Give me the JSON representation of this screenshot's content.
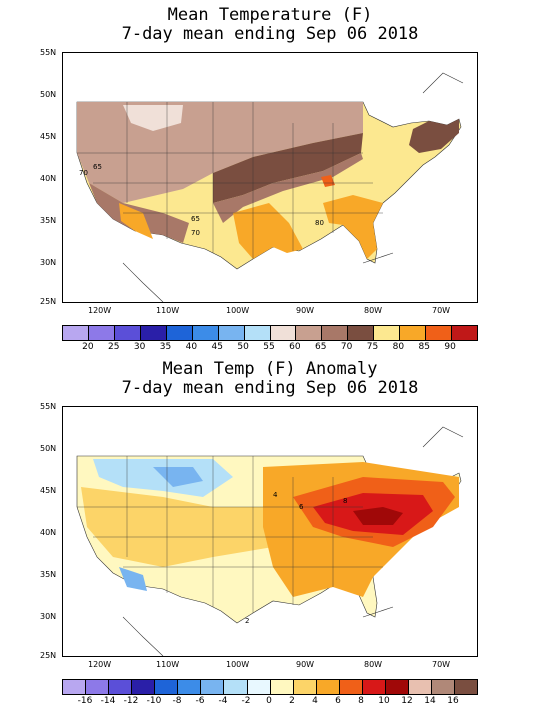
{
  "map1": {
    "title1": "Mean Temperature (F)",
    "title2": "7-day mean ending Sep 06 2018",
    "lat_labels": [
      "55N",
      "50N",
      "45N",
      "40N",
      "35N",
      "30N",
      "25N"
    ],
    "lon_labels": [
      "120W",
      "110W",
      "100W",
      "90W",
      "80W",
      "70W"
    ],
    "contour_labels": [
      "65",
      "70",
      "65",
      "70",
      "80"
    ],
    "legend_labels": [
      "20",
      "25",
      "30",
      "35",
      "40",
      "45",
      "50",
      "55",
      "60",
      "65",
      "70",
      "75",
      "80",
      "85",
      "90"
    ],
    "legend_colors": [
      "#b8a7f0",
      "#8d79e8",
      "#5b4fd8",
      "#2a1fa8",
      "#1e64d8",
      "#3c8ce8",
      "#78b4f0",
      "#b4e0f8",
      "#f0e0d8",
      "#c8a090",
      "#a87868",
      "#7a4e40",
      "#fce890",
      "#f8a828",
      "#f06018",
      "#c01818"
    ]
  },
  "map2": {
    "title1": "Mean Temp (F) Anomaly",
    "title2": "7-day mean ending Sep 06 2018",
    "lat_labels": [
      "55N",
      "50N",
      "45N",
      "40N",
      "35N",
      "30N",
      "25N"
    ],
    "lon_labels": [
      "120W",
      "110W",
      "100W",
      "90W",
      "80W",
      "70W"
    ],
    "contour_labels": [
      "4",
      "6",
      "8",
      "2"
    ],
    "legend_labels": [
      "-16",
      "-14",
      "-12",
      "-10",
      "-8",
      "-6",
      "-4",
      "-2",
      "0",
      "2",
      "4",
      "6",
      "8",
      "10",
      "12",
      "14",
      "16"
    ],
    "legend_colors": [
      "#b8a7f0",
      "#8d79e8",
      "#5b4fd8",
      "#2a1fa8",
      "#1e64d8",
      "#3c8ce8",
      "#78b4f0",
      "#b4e0f8",
      "#e8f8ff",
      "#fff8c0",
      "#fcd468",
      "#f8a828",
      "#f06018",
      "#d81818",
      "#a00808",
      "#e8c0b0",
      "#b08878",
      "#7a4e40"
    ]
  }
}
